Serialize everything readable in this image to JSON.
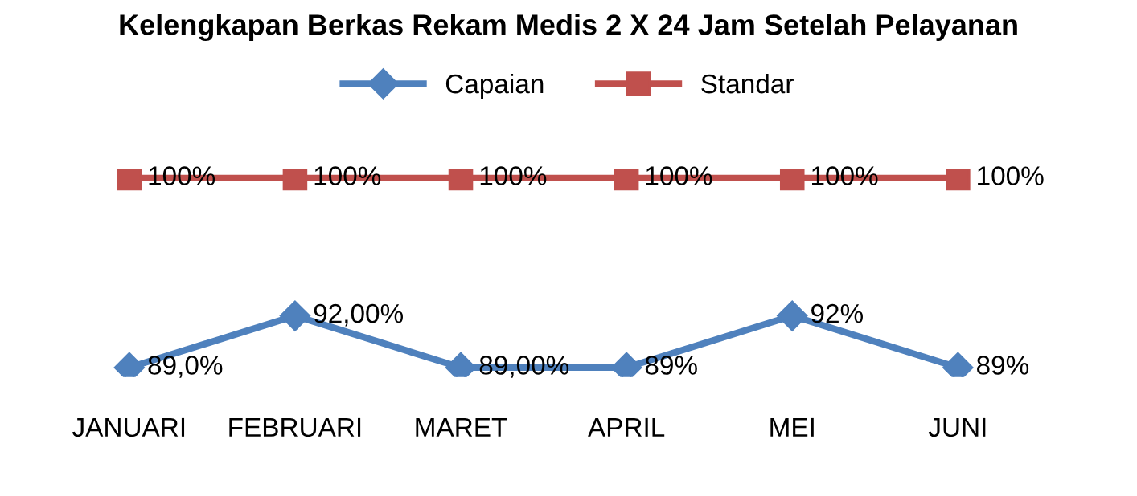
{
  "chart_data": {
    "type": "line",
    "title": "Kelengkapan Berkas Rekam Medis 2 X 24 Jam Setelah Pelayanan",
    "categories": [
      "JANUARI",
      "FEBRUARI",
      "MARET",
      "APRIL",
      "MEI",
      "JUNI"
    ],
    "series": [
      {
        "name": "Capaian",
        "color": "#4f81bd",
        "marker": "diamond",
        "values": [
          89,
          92,
          89,
          89,
          92,
          89
        ],
        "value_labels": [
          "89,0%",
          "92,00%",
          "89,00%",
          "89%",
          "92%",
          "89%"
        ]
      },
      {
        "name": "Standar",
        "color": "#c0504d",
        "marker": "square",
        "values": [
          100,
          100,
          100,
          100,
          100,
          100
        ],
        "value_labels": [
          "100%",
          "100%",
          "100%",
          "100%",
          "100%",
          "100%"
        ]
      }
    ],
    "legend": "top",
    "grid": false
  }
}
